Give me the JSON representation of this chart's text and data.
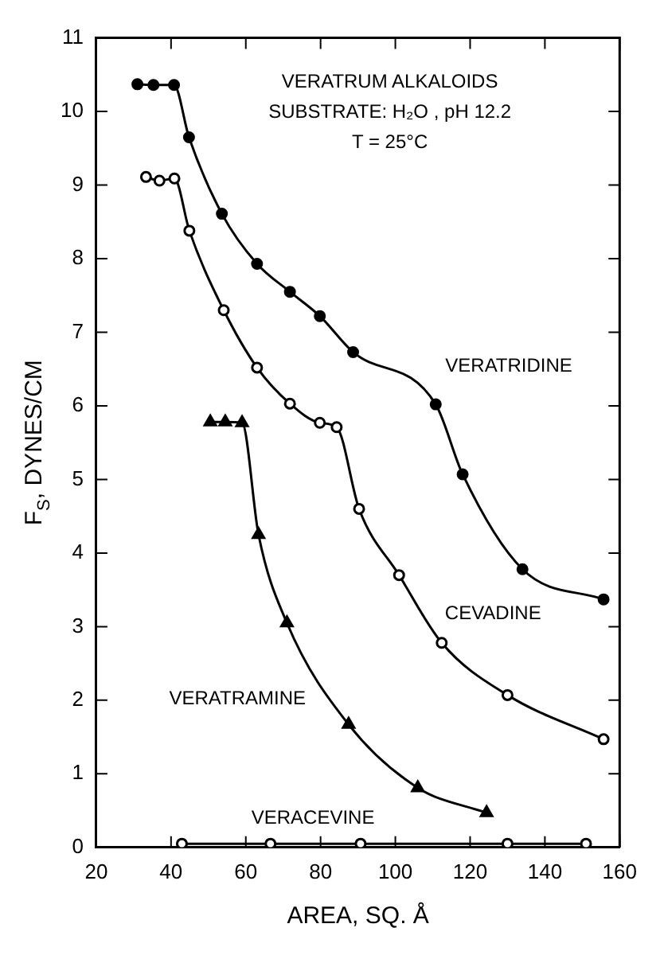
{
  "chart_data": {
    "type": "line",
    "xlabel": "AREA, SQ. Å",
    "ylabel": "F$_{S}$, DYNES/CM",
    "annotations": [
      "VERATRUM ALKALOIDS",
      "SUBSTRATE: H₂O , pH 12.2",
      "T = 25°C"
    ],
    "xlim": [
      20,
      160
    ],
    "xticks": [
      20,
      40,
      60,
      80,
      100,
      120,
      140,
      160
    ],
    "ylim": [
      0,
      11
    ],
    "yticks": [
      0,
      1,
      2,
      3,
      4,
      5,
      6,
      7,
      8,
      9,
      10,
      11
    ],
    "grid": false,
    "legend": false,
    "line_style": "solid",
    "series": [
      {
        "name": "VERATRIDINE",
        "color": "#000000",
        "marker": "circle",
        "x": [
          31,
          35.3,
          40.8,
          44.8,
          53.6,
          63,
          71.8,
          79.8,
          88.7,
          110.8,
          118,
          134,
          155.7
        ],
        "values": [
          10.37,
          10.36,
          10.36,
          9.65,
          8.61,
          7.93,
          7.55,
          7.22,
          6.73,
          6.02,
          5.07,
          3.78,
          3.37
        ]
      },
      {
        "name": "CEVADINE",
        "color": "#000000",
        "marker": "circle",
        "x": [
          33.3,
          36.9,
          40.9,
          44.9,
          54.1,
          63,
          71.8,
          79.8,
          84.3,
          90.3,
          101,
          112.4,
          130,
          155.7
        ],
        "values": [
          9.11,
          9.06,
          9.09,
          8.38,
          7.3,
          6.52,
          6.03,
          5.77,
          5.71,
          4.6,
          3.7,
          2.78,
          2.07,
          1.47
        ]
      },
      {
        "name": "VERATRAMINE",
        "color": "#000000",
        "marker": "triangle",
        "x": [
          50.5,
          54.5,
          59,
          63.4,
          71,
          87.5,
          106,
          124.4
        ],
        "values": [
          5.78,
          5.78,
          5.77,
          4.25,
          3.05,
          1.67,
          0.81,
          0.47
        ]
      },
      {
        "name": "VERACEVINE",
        "color": "#000000",
        "marker": "circle",
        "x": [
          42.9,
          66.6,
          90.7,
          130,
          151
        ],
        "values": [
          0.05,
          0.05,
          0.05,
          0.05,
          0.05
        ]
      }
    ]
  }
}
